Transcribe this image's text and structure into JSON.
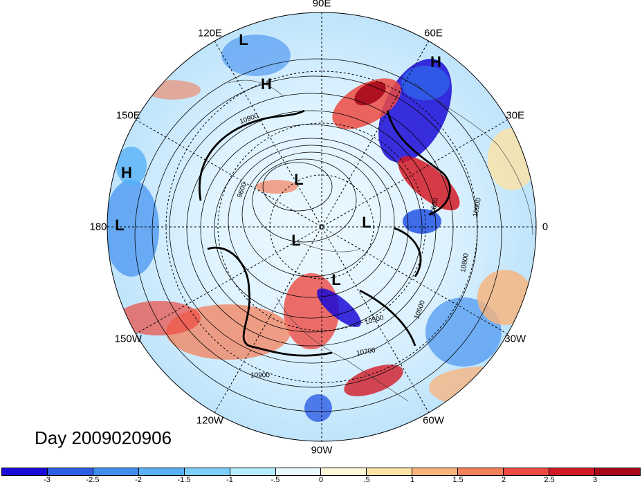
{
  "map": {
    "lon_labels": [
      {
        "text": "90E",
        "angle": 90
      },
      {
        "text": "60E",
        "angle": 60
      },
      {
        "text": "30E",
        "angle": 30
      },
      {
        "text": "0",
        "angle": 0
      },
      {
        "text": "30W",
        "angle": -30
      },
      {
        "text": "60W",
        "angle": -60
      },
      {
        "text": "90W",
        "angle": -90
      },
      {
        "text": "120W",
        "angle": -120
      },
      {
        "text": "150W",
        "angle": -150
      },
      {
        "text": "180",
        "angle": 180
      },
      {
        "text": "150E",
        "angle": 150
      },
      {
        "text": "120E",
        "angle": 120
      }
    ],
    "markers": [
      {
        "text": "L",
        "name": "low-marker"
      },
      {
        "text": "H",
        "name": "high-marker"
      },
      {
        "text": "H",
        "name": "high-marker"
      },
      {
        "text": "H",
        "name": "high-marker"
      },
      {
        "text": "L",
        "name": "low-marker"
      },
      {
        "text": "L",
        "name": "low-marker"
      },
      {
        "text": "L",
        "name": "low-marker"
      },
      {
        "text": "L",
        "name": "low-marker"
      },
      {
        "text": "L",
        "name": "low-marker"
      }
    ],
    "contour_labels": [
      "10900",
      "9600",
      "10800",
      "10600",
      "10900",
      "10500",
      "10600",
      "10700",
      "10900"
    ]
  },
  "title": "Day 2009020906",
  "colorbar": {
    "colors": [
      "#1a0ad6",
      "#2e5de6",
      "#3f8ef0",
      "#58b1f6",
      "#7ad0fb",
      "#b4ecfd",
      "#e8faff",
      "#fff8d8",
      "#fde2a4",
      "#f9b379",
      "#f3805b",
      "#ec4a42",
      "#d21a26",
      "#a6081a"
    ],
    "tick_labels": [
      "-3",
      "-2.5",
      "-2",
      "-1.5",
      "-1",
      "-.5",
      "0",
      ".5",
      "1",
      "1.5",
      "2",
      "2.5",
      "3"
    ]
  }
}
